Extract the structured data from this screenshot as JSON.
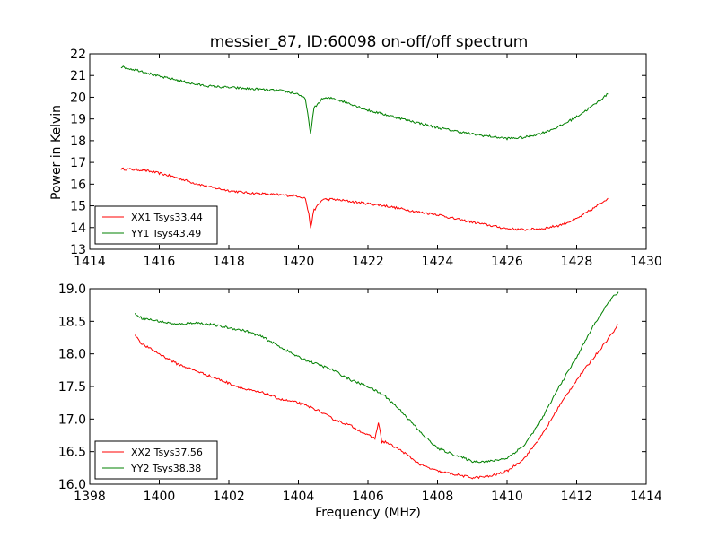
{
  "figure": {
    "title": "messier_87, ID:60098 on-off/off spectrum",
    "xlabel": "Frequency (MHz)",
    "ylabel": "Power in Kelvin"
  },
  "chart_data": [
    {
      "type": "line",
      "title": "messier_87, ID:60098 on-off/off spectrum",
      "xlabel": "",
      "ylabel": "Power in Kelvin",
      "xlim": [
        1414,
        1430
      ],
      "ylim": [
        13,
        22
      ],
      "xticks": [
        1414,
        1416,
        1418,
        1420,
        1422,
        1424,
        1426,
        1428,
        1430
      ],
      "yticks": [
        13,
        14,
        15,
        16,
        17,
        18,
        19,
        20,
        21,
        22
      ],
      "grid": false,
      "legend_position": "lower-left",
      "series": [
        {
          "name": "XX1 Tsys33.44",
          "color": "#ff0000",
          "x": [
            1414.9,
            1415.5,
            1416.0,
            1416.5,
            1417.0,
            1417.5,
            1418.0,
            1418.5,
            1419.0,
            1419.5,
            1420.0,
            1420.2,
            1420.3,
            1420.35,
            1420.45,
            1420.7,
            1421.0,
            1421.5,
            1422.0,
            1422.5,
            1423.0,
            1423.5,
            1424.0,
            1424.5,
            1425.0,
            1425.5,
            1426.0,
            1426.5,
            1427.0,
            1427.5,
            1428.0,
            1428.5,
            1428.9
          ],
          "y": [
            16.7,
            16.65,
            16.5,
            16.3,
            16.05,
            15.85,
            15.7,
            15.6,
            15.55,
            15.5,
            15.45,
            15.35,
            14.6,
            14.0,
            14.8,
            15.3,
            15.3,
            15.2,
            15.1,
            15.0,
            14.85,
            14.7,
            14.6,
            14.4,
            14.25,
            14.1,
            13.95,
            13.9,
            13.95,
            14.1,
            14.4,
            14.9,
            15.35
          ]
        },
        {
          "name": "YY1 Tsys43.49",
          "color": "#008000",
          "x": [
            1414.9,
            1415.5,
            1416.0,
            1416.5,
            1417.0,
            1417.5,
            1418.0,
            1418.5,
            1419.0,
            1419.5,
            1420.0,
            1420.2,
            1420.3,
            1420.35,
            1420.45,
            1420.7,
            1421.0,
            1421.5,
            1422.0,
            1422.5,
            1423.0,
            1423.5,
            1424.0,
            1424.5,
            1425.0,
            1425.5,
            1426.0,
            1426.5,
            1427.0,
            1427.5,
            1428.0,
            1428.5,
            1428.9
          ],
          "y": [
            21.4,
            21.2,
            20.95,
            20.8,
            20.6,
            20.5,
            20.45,
            20.4,
            20.35,
            20.3,
            20.15,
            19.9,
            18.9,
            18.3,
            19.5,
            19.95,
            19.95,
            19.7,
            19.4,
            19.2,
            19.0,
            18.8,
            18.6,
            18.45,
            18.3,
            18.2,
            18.1,
            18.15,
            18.35,
            18.65,
            19.1,
            19.65,
            20.15
          ]
        }
      ]
    },
    {
      "type": "line",
      "title": "",
      "xlabel": "Frequency (MHz)",
      "ylabel": "",
      "xlim": [
        1398,
        1414
      ],
      "ylim": [
        16.0,
        19.0
      ],
      "xticks": [
        1398,
        1400,
        1402,
        1404,
        1406,
        1408,
        1410,
        1412,
        1414
      ],
      "yticks": [
        16.0,
        16.5,
        17.0,
        17.5,
        18.0,
        18.5,
        19.0
      ],
      "grid": false,
      "legend_position": "lower-left",
      "series": [
        {
          "name": "XX2 Tsys37.56",
          "color": "#ff0000",
          "x": [
            1399.3,
            1399.5,
            1400.0,
            1400.5,
            1401.0,
            1401.5,
            1402.0,
            1402.5,
            1403.0,
            1403.5,
            1404.0,
            1404.5,
            1405.0,
            1405.5,
            1406.0,
            1406.2,
            1406.3,
            1406.4,
            1406.5,
            1407.0,
            1407.5,
            1408.0,
            1408.5,
            1409.0,
            1409.5,
            1410.0,
            1410.5,
            1411.0,
            1411.5,
            1412.0,
            1412.5,
            1413.0,
            1413.2
          ],
          "y": [
            18.3,
            18.15,
            18.0,
            17.85,
            17.75,
            17.65,
            17.55,
            17.45,
            17.4,
            17.3,
            17.25,
            17.15,
            17.0,
            16.9,
            16.75,
            16.7,
            16.95,
            16.65,
            16.65,
            16.5,
            16.3,
            16.2,
            16.15,
            16.1,
            16.12,
            16.2,
            16.4,
            16.75,
            17.2,
            17.6,
            17.95,
            18.3,
            18.45
          ]
        },
        {
          "name": "YY2 Tsys38.38",
          "color": "#008000",
          "x": [
            1399.3,
            1399.5,
            1400.0,
            1400.5,
            1401.0,
            1401.5,
            1402.0,
            1402.5,
            1403.0,
            1403.5,
            1404.0,
            1404.5,
            1405.0,
            1405.5,
            1406.0,
            1406.5,
            1407.0,
            1407.5,
            1408.0,
            1408.5,
            1409.0,
            1409.5,
            1410.0,
            1410.5,
            1411.0,
            1411.5,
            1412.0,
            1412.5,
            1413.0,
            1413.2
          ],
          "y": [
            18.62,
            18.55,
            18.5,
            18.45,
            18.48,
            18.45,
            18.4,
            18.35,
            18.25,
            18.1,
            17.95,
            17.85,
            17.75,
            17.6,
            17.5,
            17.35,
            17.1,
            16.8,
            16.55,
            16.45,
            16.35,
            16.35,
            16.4,
            16.6,
            17.0,
            17.5,
            17.95,
            18.45,
            18.85,
            18.95
          ]
        }
      ]
    }
  ]
}
